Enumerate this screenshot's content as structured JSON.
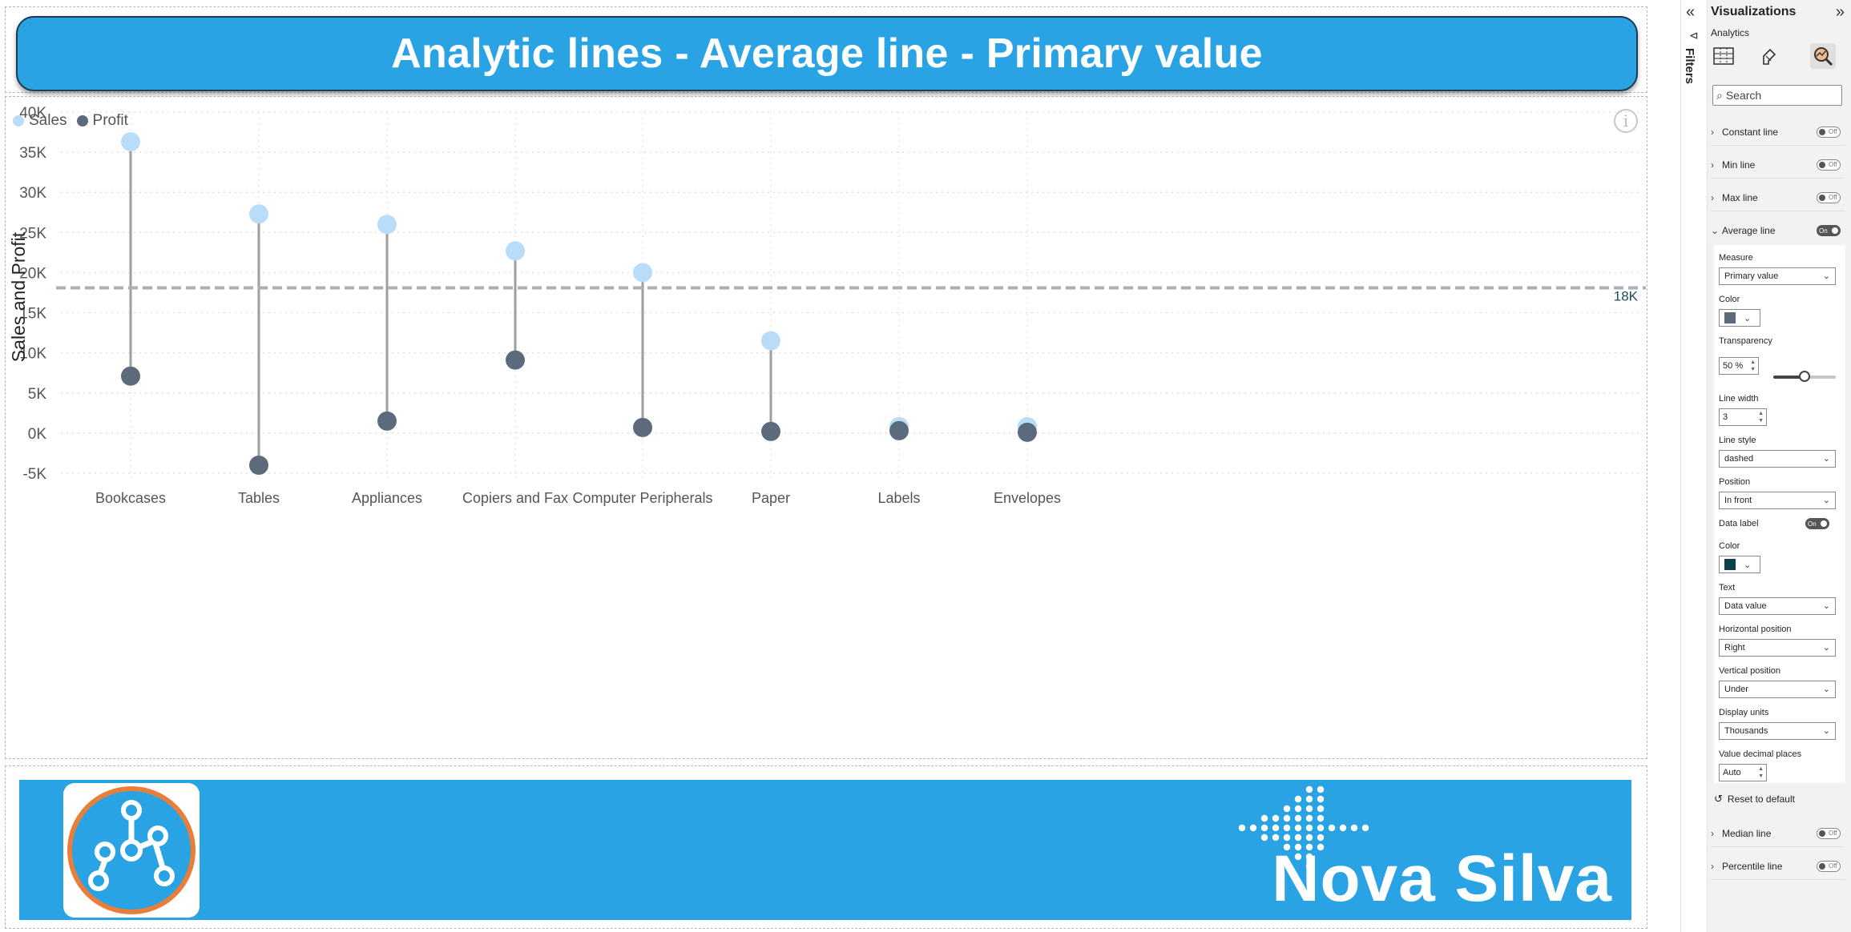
{
  "report": {
    "title": "Analytic lines - Average line - Primary value",
    "brand_text": "Nova Silva",
    "colors": {
      "accent": "#29a3e4",
      "sales": "#b9dcf8",
      "profit": "#5c6b7b",
      "stem": "#9e9e9e",
      "average_line": "#a9b0b8",
      "average_label": "#1d4d5c"
    }
  },
  "legend": {
    "sales": "Sales",
    "profit": "Profit"
  },
  "chart_data": {
    "type": "scatter",
    "subtype": "dumbbell",
    "ylabel": "Sales and Profit",
    "xlabel": "",
    "categories": [
      "Bookcases",
      "Tables",
      "Appliances",
      "Copiers and Fax",
      "Computer Peripherals",
      "Paper",
      "Labels",
      "Envelopes"
    ],
    "series": [
      {
        "name": "Sales",
        "values": [
          36300,
          27300,
          26000,
          22700,
          20000,
          11500,
          800,
          800
        ]
      },
      {
        "name": "Profit",
        "values": [
          7100,
          -4000,
          1500,
          9100,
          700,
          200,
          300,
          100
        ]
      }
    ],
    "ylim": [
      -5000,
      40000
    ],
    "yticks": [
      "40K",
      "35K",
      "30K",
      "25K",
      "20K",
      "15K",
      "10K",
      "5K",
      "0K",
      "-5K"
    ],
    "yticks_values": [
      40000,
      35000,
      30000,
      25000,
      20000,
      15000,
      10000,
      5000,
      0,
      -5000
    ],
    "average_line": {
      "value": 18100,
      "label": "18K",
      "style": "dashed"
    },
    "grid": true,
    "legend_position": "top-left"
  },
  "filters": {
    "label": "Filters"
  },
  "viz_pane": {
    "title": "Visualizations",
    "subtitle": "Analytics",
    "search_placeholder": "Search",
    "sections": [
      {
        "label": "Constant line",
        "state": "Off"
      },
      {
        "label": "Min line",
        "state": "Off"
      },
      {
        "label": "Max line",
        "state": "Off"
      },
      {
        "label": "Average line",
        "state": "On"
      }
    ],
    "average": {
      "measure_label": "Measure",
      "measure_value": "Primary value",
      "color_label": "Color",
      "line_color": "#5c6b7b",
      "transparency_label": "Transparency",
      "transparency_value": "50",
      "transparency_unit": "%",
      "transparency_fraction": 0.5,
      "line_width_label": "Line width",
      "line_width_value": "3",
      "line_style_label": "Line style",
      "line_style_value": "dashed",
      "position_label": "Position",
      "position_value": "In front",
      "data_label_label": "Data label",
      "data_label_state": "On",
      "label_color_label": "Color",
      "label_color": "#0f3f4a",
      "text_label": "Text",
      "text_value": "Data value",
      "hpos_label": "Horizontal position",
      "hpos_value": "Right",
      "vpos_label": "Vertical position",
      "vpos_value": "Under",
      "units_label": "Display units",
      "units_value": "Thousands",
      "decimals_label": "Value decimal places",
      "decimals_value": "Auto"
    },
    "reset_label": "Reset to default",
    "lower_sections": [
      {
        "label": "Median line",
        "state": "Off"
      },
      {
        "label": "Percentile line",
        "state": "Off"
      }
    ]
  }
}
